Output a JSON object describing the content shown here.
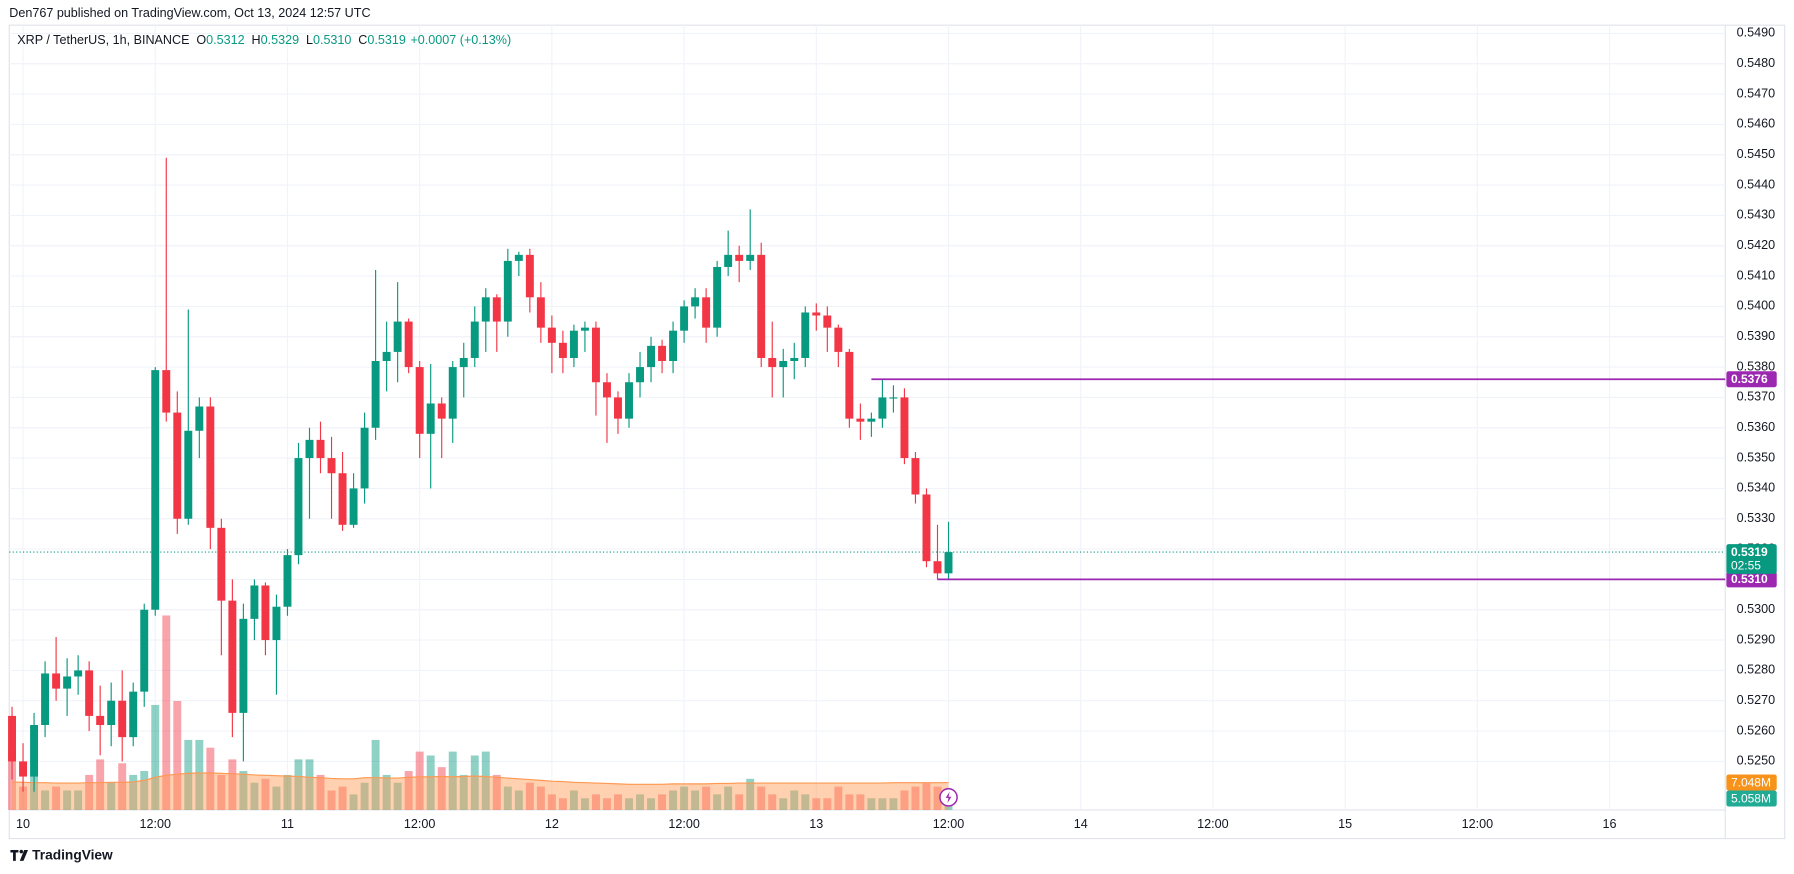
{
  "chart_data": {
    "type": "candlestick",
    "header": {
      "published": "Den767 published on TradingView.com, Oct 13, 2024 12:57 UTC",
      "symbol": "XRP / TetherUS, 1h, BINANCE",
      "legend": [
        {
          "key": "O",
          "value": "0.5312"
        },
        {
          "key": "H",
          "value": "0.5329"
        },
        {
          "key": "L",
          "value": "0.5310"
        },
        {
          "key": "C",
          "value": "0.5319"
        }
      ],
      "change": "+0.0007 (+0.13%)"
    },
    "footer": {
      "brand": "TradingView"
    },
    "up_color": "#089981",
    "down_color": "#f23645",
    "x": [
      -1,
      0,
      1,
      2,
      3,
      4,
      5,
      6,
      7,
      8,
      9,
      10,
      11,
      12,
      13,
      14,
      15,
      16,
      17,
      18,
      19,
      20,
      21,
      22,
      23,
      24,
      25,
      26,
      27,
      28,
      29,
      30,
      31,
      32,
      33,
      34,
      35,
      36,
      37,
      38,
      39,
      40,
      41,
      42,
      43,
      44,
      45,
      46,
      47,
      48,
      49,
      50,
      51,
      52,
      53,
      54,
      55,
      56,
      57,
      58,
      59,
      60,
      61,
      62,
      63,
      64,
      65,
      66,
      67,
      68,
      69,
      70,
      71,
      72,
      73,
      74,
      75,
      76,
      77,
      78,
      79,
      80,
      81,
      82,
      83,
      84
    ],
    "open": [
      0.5265,
      0.525,
      0.5245,
      0.5262,
      0.5279,
      0.5274,
      0.5278,
      0.528,
      0.5265,
      0.5262,
      0.527,
      0.5258,
      0.5273,
      0.53,
      0.5379,
      0.5365,
      0.533,
      0.5359,
      0.5367,
      0.5327,
      0.5303,
      0.5266,
      0.5297,
      0.5308,
      0.529,
      0.5301,
      0.5318,
      0.535,
      0.5356,
      0.535,
      0.5345,
      0.5328,
      0.534,
      0.536,
      0.5382,
      0.5385,
      0.5395,
      0.538,
      0.5358,
      0.5368,
      0.5363,
      0.538,
      0.5383,
      0.5395,
      0.5403,
      0.5395,
      0.5415,
      0.5417,
      0.5403,
      0.5393,
      0.5388,
      0.5383,
      0.5392,
      0.5393,
      0.5375,
      0.537,
      0.5363,
      0.5375,
      0.538,
      0.5387,
      0.5382,
      0.5392,
      0.54,
      0.5403,
      0.5393,
      0.5413,
      0.5417,
      0.5415,
      0.5417,
      0.5383,
      0.538,
      0.5382,
      0.5383,
      0.5398,
      0.5397,
      0.5393,
      0.5385,
      0.5363,
      0.5362,
      0.5363,
      0.537,
      0.537,
      0.535,
      0.5338,
      0.5316,
      0.5312
    ],
    "high": [
      0.5268,
      0.5256,
      0.5266,
      0.5283,
      0.5291,
      0.5284,
      0.5285,
      0.5283,
      0.5275,
      0.5276,
      0.528,
      0.5276,
      0.5302,
      0.538,
      0.5449,
      0.5372,
      0.5399,
      0.537,
      0.537,
      0.533,
      0.531,
      0.5302,
      0.531,
      0.5309,
      0.5305,
      0.532,
      0.5355,
      0.536,
      0.5362,
      0.5357,
      0.5352,
      0.5345,
      0.5365,
      0.5412,
      0.5395,
      0.5408,
      0.5396,
      0.5382,
      0.5381,
      0.537,
      0.5382,
      0.5388,
      0.54,
      0.5406,
      0.5404,
      0.5419,
      0.5418,
      0.5419,
      0.5408,
      0.5397,
      0.5392,
      0.5394,
      0.5395,
      0.5395,
      0.5378,
      0.5372,
      0.5378,
      0.5385,
      0.539,
      0.5389,
      0.5395,
      0.5402,
      0.5406,
      0.5406,
      0.5415,
      0.5425,
      0.542,
      0.5432,
      0.5421,
      0.5395,
      0.5386,
      0.5388,
      0.54,
      0.5401,
      0.54,
      0.5394,
      0.5386,
      0.5368,
      0.5365,
      0.5376,
      0.5374,
      0.5373,
      0.5352,
      0.534,
      0.5328,
      0.5329
    ],
    "low": [
      0.5244,
      0.524,
      0.524,
      0.5258,
      0.527,
      0.5265,
      0.5272,
      0.526,
      0.5252,
      0.5255,
      0.525,
      0.5255,
      0.5268,
      0.5298,
      0.5362,
      0.5325,
      0.5328,
      0.535,
      0.532,
      0.5285,
      0.5258,
      0.525,
      0.529,
      0.5285,
      0.5272,
      0.5298,
      0.5315,
      0.533,
      0.5345,
      0.533,
      0.5326,
      0.5327,
      0.5335,
      0.5356,
      0.5372,
      0.5375,
      0.5378,
      0.535,
      0.534,
      0.535,
      0.5355,
      0.537,
      0.538,
      0.5385,
      0.5385,
      0.539,
      0.541,
      0.5398,
      0.5388,
      0.5378,
      0.5378,
      0.538,
      0.5385,
      0.5364,
      0.5355,
      0.5358,
      0.536,
      0.537,
      0.5375,
      0.5378,
      0.5378,
      0.5388,
      0.5396,
      0.5388,
      0.539,
      0.541,
      0.5408,
      0.5412,
      0.538,
      0.537,
      0.537,
      0.5376,
      0.538,
      0.5392,
      0.5385,
      0.538,
      0.536,
      0.5356,
      0.5357,
      0.536,
      0.5365,
      0.5348,
      0.5335,
      0.5314,
      0.531,
      0.531
    ],
    "close": [
      0.525,
      0.5245,
      0.5262,
      0.5279,
      0.5274,
      0.5278,
      0.528,
      0.5265,
      0.5262,
      0.527,
      0.5258,
      0.5273,
      0.53,
      0.5379,
      0.5365,
      0.533,
      0.5359,
      0.5367,
      0.5327,
      0.5303,
      0.5266,
      0.5297,
      0.5308,
      0.529,
      0.5301,
      0.5318,
      0.535,
      0.5356,
      0.535,
      0.5345,
      0.5328,
      0.534,
      0.536,
      0.5382,
      0.5385,
      0.5395,
      0.538,
      0.5358,
      0.5368,
      0.5363,
      0.538,
      0.5383,
      0.5395,
      0.5403,
      0.5395,
      0.5415,
      0.5417,
      0.5403,
      0.5393,
      0.5388,
      0.5383,
      0.5392,
      0.5393,
      0.5375,
      0.537,
      0.5363,
      0.5375,
      0.538,
      0.5387,
      0.5382,
      0.5392,
      0.54,
      0.5403,
      0.5393,
      0.5413,
      0.5417,
      0.5415,
      0.5417,
      0.5383,
      0.538,
      0.5382,
      0.5383,
      0.5398,
      0.5397,
      0.5393,
      0.5385,
      0.5363,
      0.5362,
      0.5363,
      0.537,
      0.537,
      0.535,
      0.5338,
      0.5316,
      0.5312,
      0.5319
    ],
    "volume": {
      "values": [
        16,
        6,
        9,
        5,
        6,
        5,
        5,
        9,
        13,
        7,
        12,
        9,
        10,
        27,
        50,
        28,
        18,
        18,
        16,
        9,
        13,
        10,
        7,
        8,
        6,
        9,
        13,
        13,
        9,
        5,
        6,
        4,
        7,
        18,
        9,
        7,
        10,
        15,
        14,
        11,
        15,
        9,
        14,
        15,
        9,
        6,
        5,
        7,
        6,
        4,
        3,
        5,
        3,
        4,
        3,
        4,
        3,
        4,
        3,
        4,
        5,
        6,
        5,
        6,
        4,
        6,
        4,
        8,
        6,
        4,
        3,
        5,
        4,
        3,
        3,
        6,
        4,
        4,
        3,
        3,
        3,
        5,
        6,
        7,
        6,
        5.058
      ],
      "ma": [
        7.2,
        7.1,
        7.0,
        7.0,
        6.9,
        6.9,
        6.9,
        7.0,
        7.0,
        7.1,
        7.1,
        7.2,
        7.6,
        8.4,
        8.9,
        9.2,
        9.4,
        9.5,
        9.5,
        9.4,
        9.3,
        9.2,
        9.0,
        8.9,
        8.8,
        8.7,
        8.6,
        8.4,
        8.3,
        8.1,
        8.0,
        8.0,
        8.3,
        8.3,
        8.2,
        8.2,
        8.4,
        8.5,
        8.5,
        8.6,
        8.5,
        8.6,
        8.7,
        8.6,
        8.4,
        8.2,
        8.0,
        7.8,
        7.6,
        7.4,
        7.3,
        7.1,
        7.0,
        6.9,
        6.8,
        6.7,
        6.6,
        6.6,
        6.6,
        6.6,
        6.7,
        6.7,
        6.7,
        6.7,
        6.8,
        6.8,
        6.9,
        6.9,
        6.9,
        6.9,
        6.9,
        6.9,
        6.9,
        6.9,
        6.9,
        6.9,
        6.9,
        6.9,
        6.9,
        6.9,
        7.0,
        7.0,
        7.0,
        7.0,
        7.0,
        7.048
      ],
      "ma_color": "#ff9850",
      "last_ma": {
        "value": 7.048,
        "label": "7.048M"
      },
      "last_volume": {
        "value": 5.058,
        "label": "5.058M"
      }
    },
    "current_price": {
      "value": 0.5319,
      "label": "0.5319",
      "countdown": "02:55"
    },
    "levels": [
      {
        "value": 0.5376,
        "label": "0.5376",
        "from": 77,
        "color": "#9c27b0"
      },
      {
        "value": 0.531,
        "label": "0.5310",
        "from": 83,
        "color": "#9c27b0"
      }
    ],
    "xlim": [
      -1.25,
      154.5
    ],
    "ylim": [
      0.5234,
      0.5498
    ],
    "xticks": [
      {
        "value": 0,
        "label": "10"
      },
      {
        "value": 12,
        "label": "12:00"
      },
      {
        "value": 24,
        "label": "11"
      },
      {
        "value": 36,
        "label": "12:00"
      },
      {
        "value": 48,
        "label": "12"
      },
      {
        "value": 60,
        "label": "12:00"
      },
      {
        "value": 72,
        "label": "13"
      },
      {
        "value": 84,
        "label": "12:00"
      },
      {
        "value": 96,
        "label": "14"
      },
      {
        "value": 108,
        "label": "12:00"
      },
      {
        "value": 120,
        "label": "15"
      },
      {
        "value": 132,
        "label": "12:00"
      },
      {
        "value": 144,
        "label": "16"
      }
    ],
    "yticks": [
      {
        "value": 0.525,
        "label": "0.5250"
      },
      {
        "value": 0.526,
        "label": "0.5260"
      },
      {
        "value": 0.527,
        "label": "0.5270"
      },
      {
        "value": 0.528,
        "label": "0.5280"
      },
      {
        "value": 0.529,
        "label": "0.5290"
      },
      {
        "value": 0.53,
        "label": "0.5300"
      },
      {
        "value": 0.531,
        "label": "0.5310"
      },
      {
        "value": 0.532,
        "label": "0.5320"
      },
      {
        "value": 0.533,
        "label": "0.5330"
      },
      {
        "value": 0.534,
        "label": "0.5340"
      },
      {
        "value": 0.535,
        "label": "0.5350"
      },
      {
        "value": 0.536,
        "label": "0.5360"
      },
      {
        "value": 0.537,
        "label": "0.5370"
      },
      {
        "value": 0.538,
        "label": "0.5380"
      },
      {
        "value": 0.539,
        "label": "0.5390"
      },
      {
        "value": 0.54,
        "label": "0.5400"
      },
      {
        "value": 0.541,
        "label": "0.5410"
      },
      {
        "value": 0.542,
        "label": "0.5420"
      },
      {
        "value": 0.543,
        "label": "0.5430"
      },
      {
        "value": 0.544,
        "label": "0.5440"
      },
      {
        "value": 0.545,
        "label": "0.5450"
      },
      {
        "value": 0.546,
        "label": "0.5460"
      },
      {
        "value": 0.547,
        "label": "0.5470"
      },
      {
        "value": 0.548,
        "label": "0.5480"
      },
      {
        "value": 0.549,
        "label": "0.5490"
      }
    ],
    "grid": true
  }
}
